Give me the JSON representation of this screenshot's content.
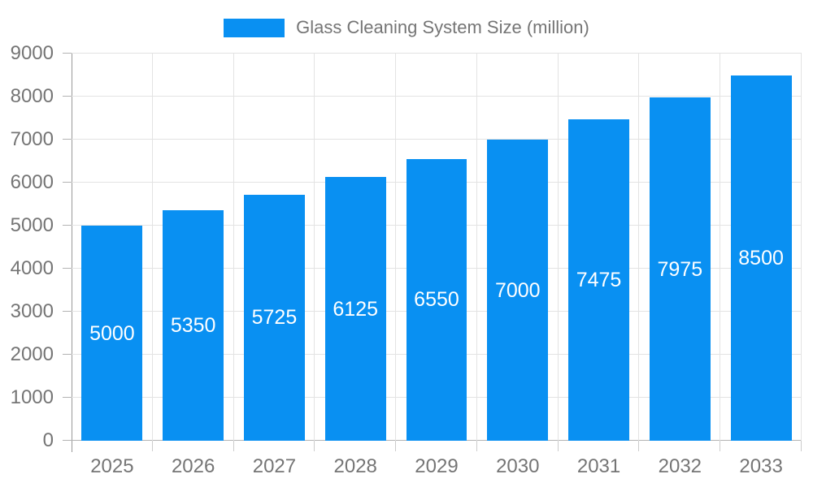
{
  "chart_data": {
    "type": "bar",
    "title": "Glass Cleaning System Size (million)",
    "legend": {
      "label": "Glass Cleaning System Size (million)",
      "position": "top-center"
    },
    "categories": [
      "2025",
      "2026",
      "2027",
      "2028",
      "2029",
      "2030",
      "2031",
      "2032",
      "2033"
    ],
    "values": [
      5000,
      5350,
      5725,
      6125,
      6550,
      7000,
      7475,
      7975,
      8500
    ],
    "xlabel": "",
    "ylabel": "",
    "ylim": [
      0,
      9000
    ],
    "yticks": [
      0,
      1000,
      2000,
      3000,
      4000,
      5000,
      6000,
      7000,
      8000,
      9000
    ],
    "grid": true,
    "colors": {
      "bar": "#0990F2",
      "value_label": "#FFFFFF",
      "axis_text": "#757575",
      "gridline": "#E3E3E3",
      "axis_line": "#999999",
      "baseline": "#B3B3B3",
      "background": "#FFFFFF"
    }
  }
}
